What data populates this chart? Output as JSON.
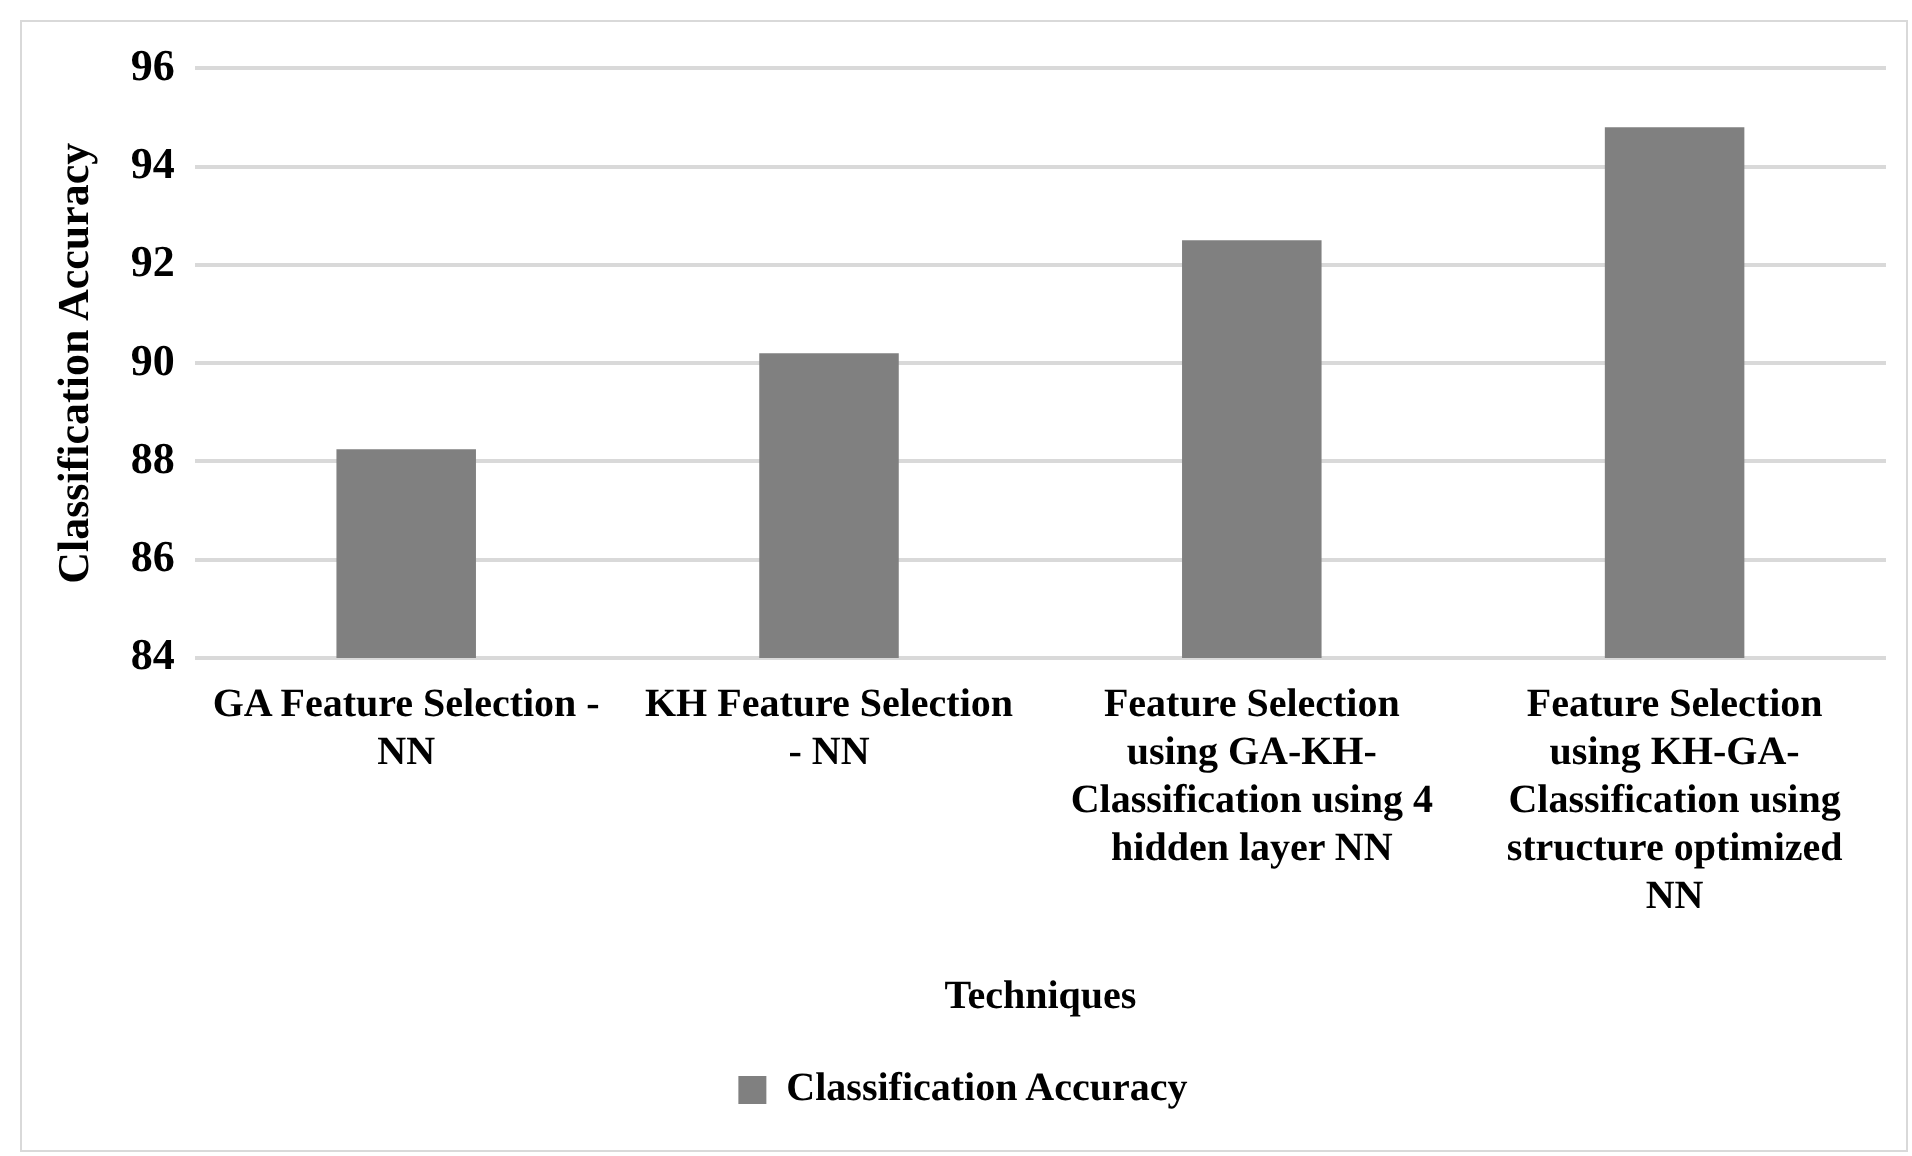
{
  "chart_data": {
    "type": "bar",
    "categories": [
      "GA Feature Selection -NN",
      "KH Feature Selection - NN",
      "Feature Selection using GA-KH-Classification using 4 hidden layer NN",
      "Feature Selection using KH-GA-Classification using structure optimized NN"
    ],
    "series": [
      {
        "name": "Classification Accuracy",
        "color": "#808080",
        "values": [
          88.25,
          90.2,
          92.5,
          94.8
        ]
      }
    ],
    "xlabel": "Techniques",
    "ylabel": "Classification Accuracy",
    "ylim": [
      84,
      96
    ],
    "yticks": [
      84,
      86,
      88,
      90,
      92,
      94,
      96
    ],
    "grid": "y",
    "legend": "bottom"
  }
}
